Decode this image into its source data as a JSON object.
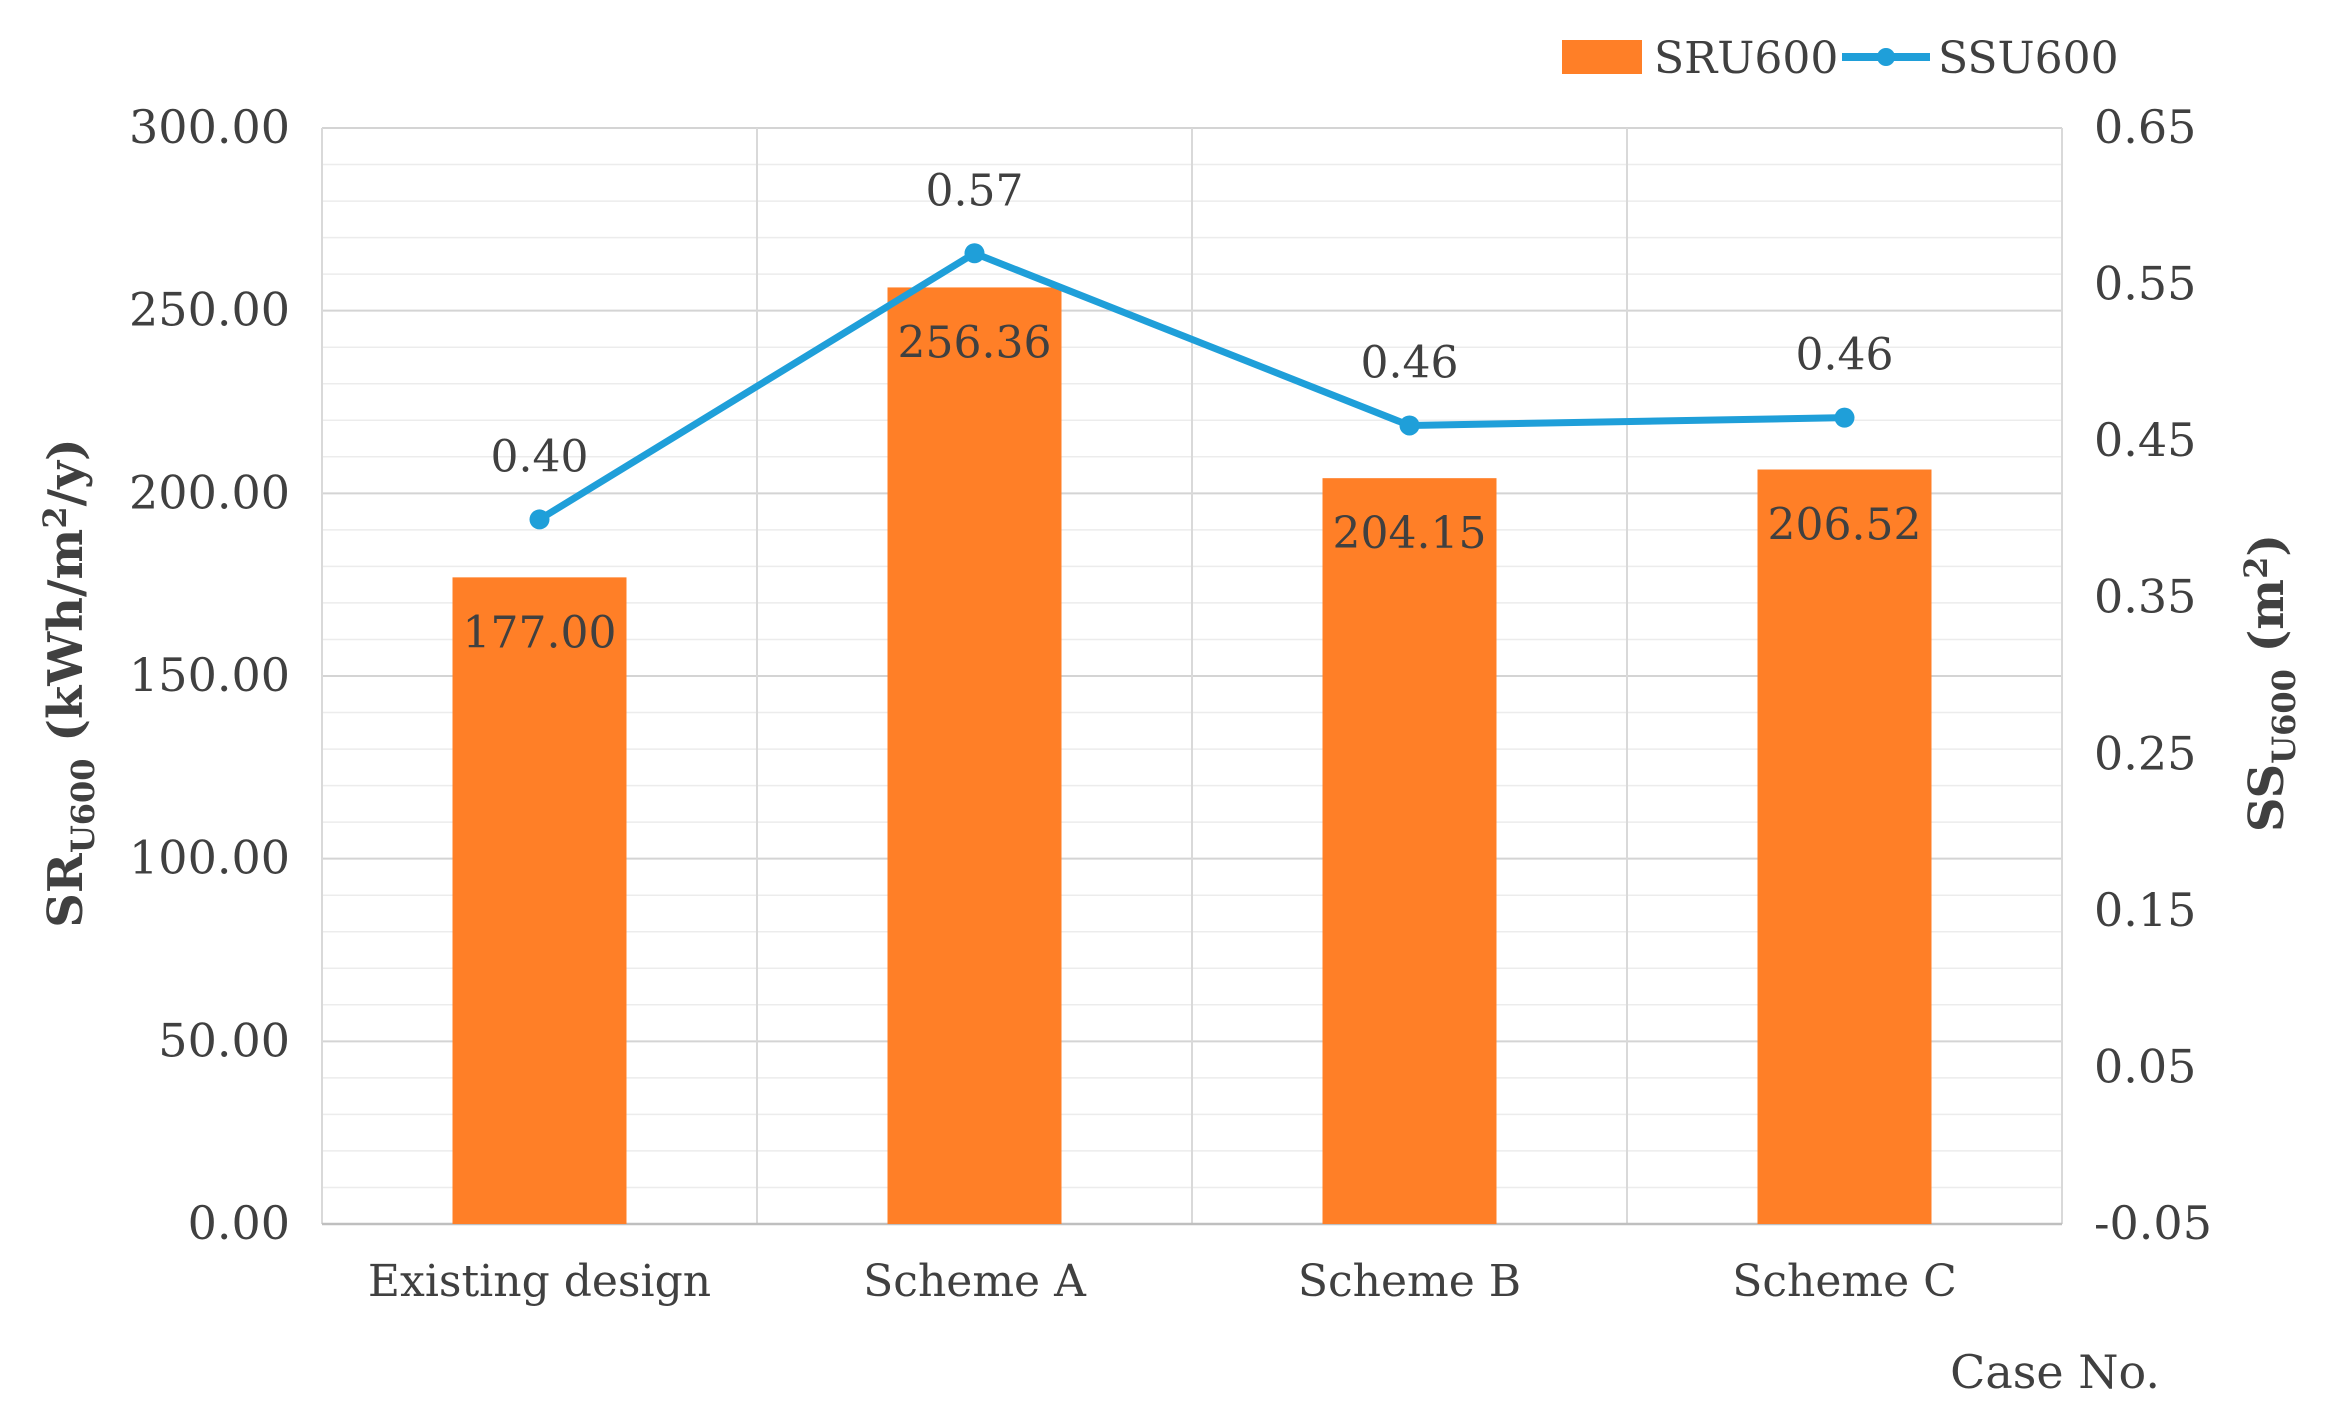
{
  "chart_data": {
    "type": "bar+line",
    "categories": [
      "Existing design",
      "Scheme A",
      "Scheme B",
      "Scheme C"
    ],
    "series": [
      {
        "name": "SRU600",
        "type": "bar",
        "axis": "left",
        "color": "#FF7F27",
        "values": [
          177.0,
          256.36,
          204.15,
          206.52
        ],
        "labels": [
          "177.00",
          "256.36",
          "204.15",
          "206.52"
        ]
      },
      {
        "name": "SSU600",
        "type": "line",
        "axis": "right",
        "color": "#1F9FD9",
        "values": [
          0.4,
          0.57,
          0.46,
          0.465
        ],
        "labels": [
          "0.40",
          "0.57",
          "0.46",
          "0.46"
        ]
      }
    ],
    "left_axis": {
      "title_main": "SR",
      "title_sub": "U600",
      "title_rest": " (kWh/m",
      "title_sup": "2",
      "title_end": "/y)",
      "ylim": [
        0,
        300
      ],
      "ticks": [
        "0.00",
        "50.00",
        "100.00",
        "150.00",
        "200.00",
        "250.00",
        "300.00"
      ],
      "tick_values": [
        0,
        50,
        100,
        150,
        200,
        250,
        300
      ]
    },
    "right_axis": {
      "title_main": "SS",
      "title_sub": "U600",
      "title_rest": " (m",
      "title_sup": "2",
      "title_end": ")",
      "ylim": [
        -0.05,
        0.65
      ],
      "ticks": [
        "-0.05",
        "0.05",
        "0.15",
        "0.25",
        "0.35",
        "0.45",
        "0.55",
        "0.65"
      ],
      "tick_values": [
        -0.05,
        0.05,
        0.15,
        0.25,
        0.35,
        0.45,
        0.55,
        0.65
      ]
    },
    "xlabel": "Case No.",
    "legend": {
      "position": "top-right",
      "items": [
        "SRU600",
        "SSU600"
      ]
    },
    "grid": true
  }
}
